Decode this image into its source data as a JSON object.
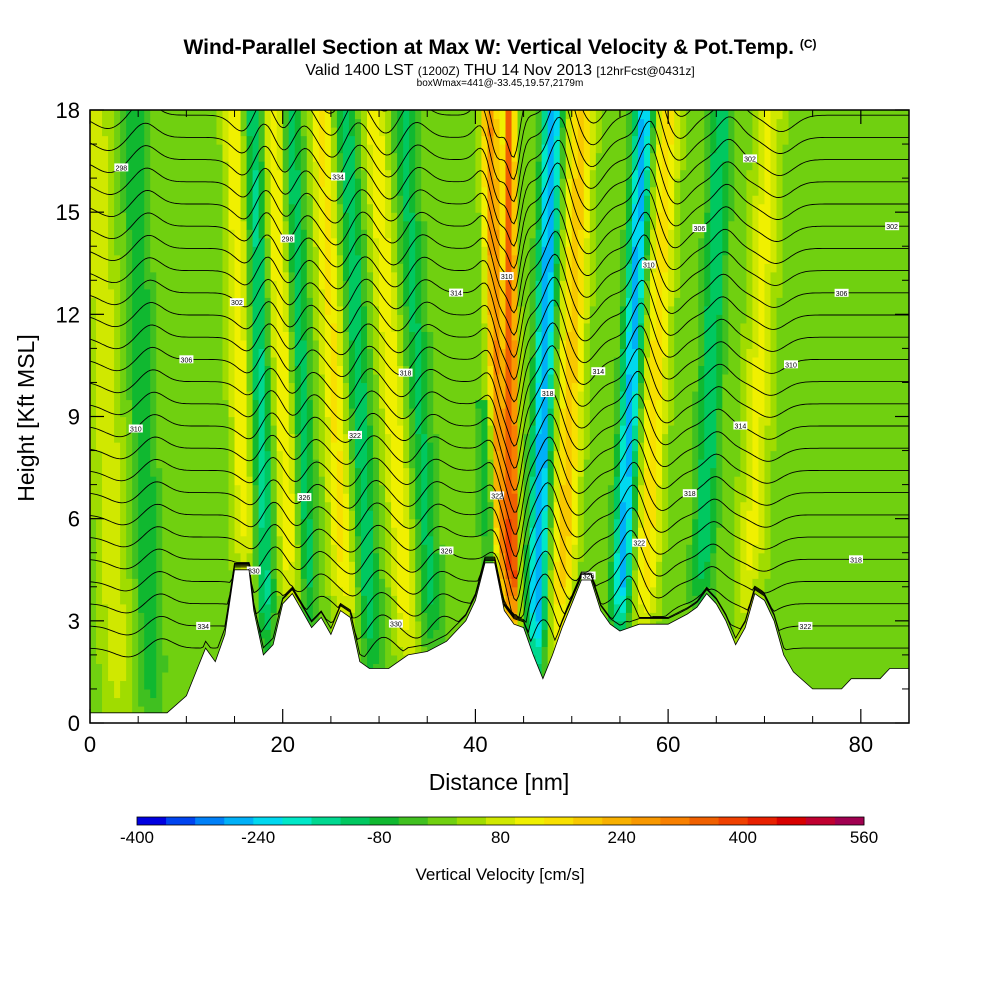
{
  "header": {
    "title": "Wind-Parallel Section at Max W: Vertical Velocity & Pot.Temp.",
    "copyright": "(C)",
    "valid_label": "Valid 1400 LST",
    "utc_time": "(1200Z)",
    "date": "THU 14 Nov 2013",
    "forecast": "[12hrFcst@0431z]",
    "box_info": "boxWmax=441@-33.45,19.57,2179m"
  },
  "chart_data": {
    "type": "heatmap",
    "title": "Wind-Parallel Section at Max W: Vertical Velocity & Pot.Temp.",
    "xlabel": "Distance [nm]",
    "ylabel": "Height [Kft MSL]",
    "xlim": [
      0,
      85
    ],
    "ylim": [
      0,
      18
    ],
    "x_ticks": [
      0,
      20,
      40,
      60,
      80
    ],
    "x_tick_labels": [
      "0",
      "20",
      "40",
      "60",
      "80"
    ],
    "y_ticks": [
      0,
      3,
      6,
      9,
      12,
      15,
      18
    ],
    "y_tick_labels": [
      "0",
      "3",
      "6",
      "9",
      "12",
      "15",
      "18"
    ],
    "colorbar": {
      "title": "Vertical Velocity [cm/s]",
      "min": -400,
      "max": 560,
      "step": 40,
      "tick_values": [
        -400,
        -240,
        -80,
        80,
        240,
        400,
        560
      ],
      "tick_labels": [
        "-400",
        "-240",
        "-80",
        "80",
        "240",
        "400",
        "560"
      ],
      "colors": [
        "#0000e0",
        "#0044f0",
        "#0080f8",
        "#00b0f8",
        "#00d8f0",
        "#00e8c8",
        "#00d890",
        "#00c860",
        "#10b830",
        "#40c020",
        "#70d010",
        "#a0dc00",
        "#d0e800",
        "#f0f000",
        "#f8e000",
        "#f8c800",
        "#f8b000",
        "#f89800",
        "#f88000",
        "#f06000",
        "#f04000",
        "#e82000",
        "#d80000",
        "#c00030",
        "#a00050"
      ]
    },
    "terrain_kft": [
      [
        0,
        0.3
      ],
      [
        8,
        0.3
      ],
      [
        10,
        0.8
      ],
      [
        11,
        1.5
      ],
      [
        12,
        2.2
      ],
      [
        13,
        1.8
      ],
      [
        14,
        2.6
      ],
      [
        15,
        4.5
      ],
      [
        16.5,
        4.5
      ],
      [
        17,
        3.3
      ],
      [
        18,
        2.0
      ],
      [
        19,
        2.3
      ],
      [
        20,
        3.5
      ],
      [
        21,
        3.8
      ],
      [
        22,
        3.3
      ],
      [
        23,
        2.8
      ],
      [
        24,
        3.1
      ],
      [
        25,
        2.6
      ],
      [
        26,
        3.3
      ],
      [
        27,
        3.1
      ],
      [
        28,
        1.8
      ],
      [
        29,
        1.6
      ],
      [
        31,
        1.6
      ],
      [
        33,
        2.0
      ],
      [
        35,
        2.1
      ],
      [
        37,
        2.4
      ],
      [
        39,
        3.0
      ],
      [
        40,
        3.6
      ],
      [
        41,
        4.7
      ],
      [
        42,
        4.7
      ],
      [
        43,
        3.3
      ],
      [
        44,
        2.9
      ],
      [
        45,
        2.8
      ],
      [
        46,
        2.0
      ],
      [
        47,
        1.3
      ],
      [
        48,
        2.0
      ],
      [
        49,
        2.8
      ],
      [
        50,
        3.5
      ],
      [
        51,
        4.2
      ],
      [
        52,
        4.2
      ],
      [
        53,
        3.3
      ],
      [
        54,
        2.9
      ],
      [
        55,
        2.7
      ],
      [
        56,
        2.8
      ],
      [
        57,
        2.9
      ],
      [
        60,
        2.9
      ],
      [
        62,
        3.2
      ],
      [
        63,
        3.4
      ],
      [
        64,
        3.8
      ],
      [
        65,
        3.5
      ],
      [
        66,
        3.0
      ],
      [
        67,
        2.3
      ],
      [
        68,
        2.8
      ],
      [
        69,
        3.8
      ],
      [
        70,
        3.6
      ],
      [
        71,
        3.0
      ],
      [
        72,
        2.0
      ],
      [
        73,
        1.5
      ],
      [
        75,
        1.0
      ],
      [
        78,
        1.0
      ],
      [
        79,
        1.3
      ],
      [
        82,
        1.3
      ],
      [
        83,
        1.6
      ],
      [
        85,
        1.6
      ]
    ],
    "velocity_bands": [
      {
        "x0": 3.0,
        "x1": 0.5,
        "amp": 90,
        "width": 1.5,
        "top": 18
      },
      {
        "x0": 6.5,
        "x1": 4.5,
        "amp": -100,
        "width": 1.2,
        "top": 18
      },
      {
        "x0": 16.5,
        "x1": 15.0,
        "amp": 130,
        "width": 1.2,
        "top": 18
      },
      {
        "x0": 18.5,
        "x1": 17.0,
        "amp": -160,
        "width": 1.1,
        "top": 18
      },
      {
        "x0": 21.5,
        "x1": 19.0,
        "amp": 150,
        "width": 1.3,
        "top": 18
      },
      {
        "x0": 23.0,
        "x1": 20.8,
        "amp": -140,
        "width": 1.1,
        "top": 18
      },
      {
        "x0": 27.0,
        "x1": 24.0,
        "amp": 150,
        "width": 1.3,
        "top": 18
      },
      {
        "x0": 29.5,
        "x1": 26.5,
        "amp": -130,
        "width": 1.2,
        "top": 18
      },
      {
        "x0": 33.5,
        "x1": 29.5,
        "amp": 130,
        "width": 1.3,
        "top": 18
      },
      {
        "x0": 36.0,
        "x1": 32.5,
        "amp": -110,
        "width": 1.2,
        "top": 18
      },
      {
        "x0": 44.0,
        "x1": 43.5,
        "amp": 380,
        "width": 0.6,
        "top": 18
      },
      {
        "x0": 43.2,
        "x1": 41.5,
        "amp": 300,
        "width": 0.9,
        "top": 18
      },
      {
        "x0": 42.0,
        "x1": 40.0,
        "amp": -120,
        "width": 0.8,
        "top": 9
      },
      {
        "x0": 46.0,
        "x1": 48.0,
        "amp": -300,
        "width": 1.0,
        "top": 18
      },
      {
        "x0": 48.5,
        "x1": 51.0,
        "amp": 200,
        "width": 1.3,
        "top": 18
      },
      {
        "x0": 54.5,
        "x1": 57.5,
        "amp": -280,
        "width": 1.0,
        "top": 18
      },
      {
        "x0": 57.0,
        "x1": 60.0,
        "amp": 160,
        "width": 1.3,
        "top": 18
      },
      {
        "x0": 63.0,
        "x1": 65.5,
        "amp": -140,
        "width": 1.1,
        "top": 18
      },
      {
        "x0": 68.0,
        "x1": 70.5,
        "amp": 110,
        "width": 1.4,
        "top": 18
      }
    ],
    "isentrope_labels": [
      "334",
      "330",
      "326",
      "322",
      "318",
      "314",
      "310",
      "306",
      "302",
      "298"
    ],
    "contour_levels": 26
  }
}
